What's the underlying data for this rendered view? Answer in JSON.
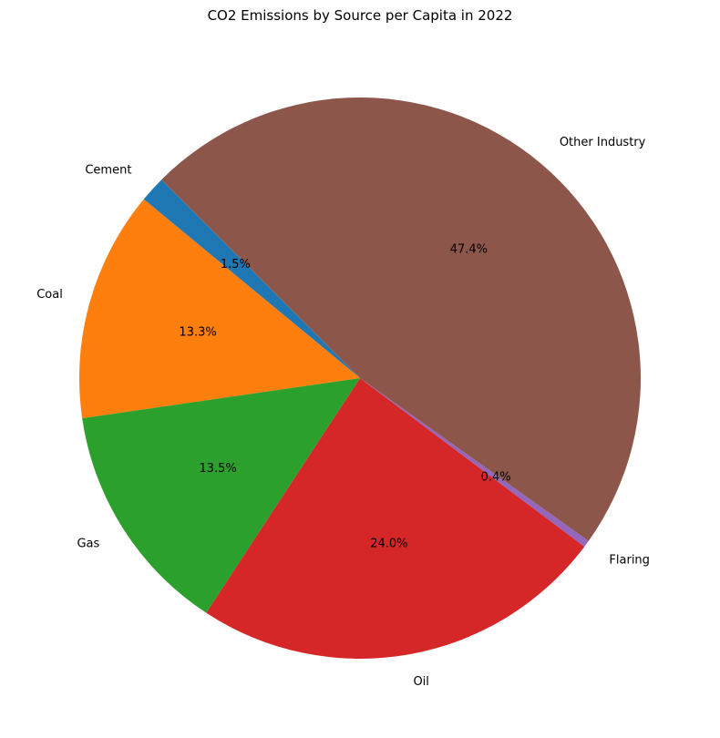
{
  "chart_data": {
    "type": "pie",
    "title": "CO2 Emissions by Source per Capita in 2022",
    "start_angle": 135,
    "direction": "counterclockwise",
    "slices": [
      {
        "label": "Cement",
        "value": 1.5,
        "pct_label": "1.5%",
        "color": "#1f77b4"
      },
      {
        "label": "Coal",
        "value": 13.3,
        "pct_label": "13.3%",
        "color": "#ff7f0e"
      },
      {
        "label": "Gas",
        "value": 13.5,
        "pct_label": "13.5%",
        "color": "#2ca02c"
      },
      {
        "label": "Oil",
        "value": 24.0,
        "pct_label": "24.0%",
        "color": "#d62728"
      },
      {
        "label": "Flaring",
        "value": 0.4,
        "pct_label": "0.4%",
        "color": "#9467bd"
      },
      {
        "label": "Other Industry",
        "value": 47.4,
        "pct_label": "47.4%",
        "color": "#8c564b"
      }
    ]
  }
}
